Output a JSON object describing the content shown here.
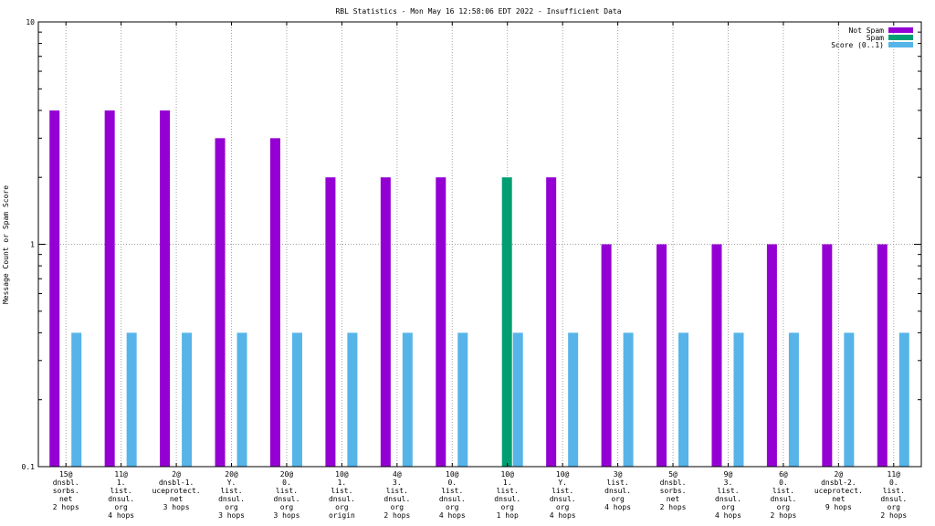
{
  "chart_data": {
    "type": "bar",
    "title": "RBL Statistics - Mon May 16 12:58:06 EDT 2022 - Insufficient Data",
    "xlabel": "",
    "ylabel": "Message Count or Spam Score",
    "yscale": "log",
    "ylim": [
      0.1,
      10
    ],
    "yticks": [
      0.1,
      1,
      10
    ],
    "ytick_labels": [
      "0.1",
      "1",
      "10"
    ],
    "grid": true,
    "legend_position": "top-right",
    "categories": [
      [
        "15@",
        "dnsbl.",
        "sorbs.",
        "net",
        "2 hops"
      ],
      [
        "11@",
        "1.",
        "list.",
        "dnsul.",
        "org",
        "4 hops"
      ],
      [
        "2@",
        "dnsbl-1.",
        "uceprotect.",
        "net",
        "3 hops"
      ],
      [
        "20@",
        "Y.",
        "list.",
        "dnsul.",
        "org",
        "3 hops"
      ],
      [
        "20@",
        "0.",
        "list.",
        "dnsul.",
        "org",
        "3 hops"
      ],
      [
        "10@",
        "1.",
        "list.",
        "dnsul.",
        "org",
        "origin"
      ],
      [
        "4@",
        "3.",
        "list.",
        "dnsul.",
        "org",
        "2 hops"
      ],
      [
        "10@",
        "0.",
        "list.",
        "dnsul.",
        "org",
        "4 hops"
      ],
      [
        "10@",
        "1.",
        "list.",
        "dnsul.",
        "org",
        "1 hop"
      ],
      [
        "10@",
        "Y.",
        "list.",
        "dnsul.",
        "org",
        "4 hops"
      ],
      [
        "3@",
        "list.",
        "dnsul.",
        "org",
        "4 hops"
      ],
      [
        "5@",
        "dnsbl.",
        "sorbs.",
        "net",
        "2 hops"
      ],
      [
        "9@",
        "3.",
        "list.",
        "dnsul.",
        "org",
        "4 hops"
      ],
      [
        "6@",
        "0.",
        "list.",
        "dnsul.",
        "org",
        "2 hops"
      ],
      [
        "2@",
        "dnsbl-2.",
        "uceprotect.",
        "net",
        "9 hops"
      ],
      [
        "11@",
        "0.",
        "list.",
        "dnsul.",
        "org",
        "2 hops"
      ]
    ],
    "series": [
      {
        "name": "Not Spam",
        "color": "#9400d3",
        "values": [
          4,
          4,
          4,
          3,
          3,
          2,
          2,
          2,
          0,
          2,
          1,
          1,
          1,
          1,
          1,
          1
        ]
      },
      {
        "name": "Spam",
        "color": "#009e73",
        "values": [
          0,
          0,
          0,
          0,
          0,
          0,
          0,
          0,
          2,
          0,
          0,
          0,
          0,
          0,
          0,
          0
        ]
      },
      {
        "name": "Score (0..1)",
        "color": "#56b4e9",
        "values": [
          0.4,
          0.4,
          0.4,
          0.4,
          0.4,
          0.4,
          0.4,
          0.4,
          0.4,
          0.4,
          0.4,
          0.4,
          0.4,
          0.4,
          0.4,
          0.4
        ]
      }
    ]
  }
}
